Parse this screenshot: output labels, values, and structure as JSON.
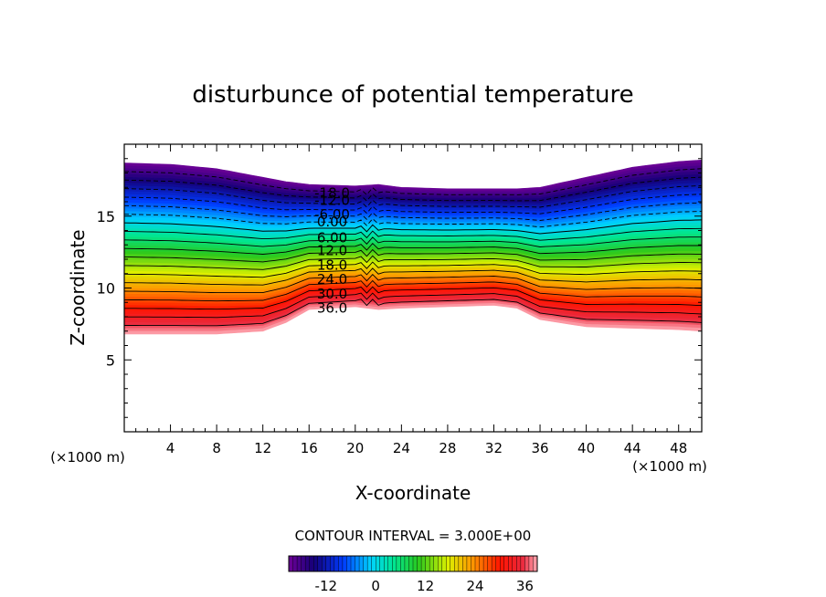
{
  "chart_data": {
    "type": "contour",
    "title": "disturbunce of potential temperature",
    "xlabel": "X-coordinate",
    "ylabel": "Z-coordinate",
    "x_unit_label": "(×1000 m)",
    "y_unit_label": "(×1000 m)",
    "xlim": [
      0,
      50
    ],
    "ylim": [
      0,
      20
    ],
    "x_ticks": [
      4,
      8,
      12,
      16,
      20,
      24,
      28,
      32,
      36,
      40,
      44,
      48
    ],
    "y_ticks": [
      5,
      10,
      15
    ],
    "contour_interval_text": "CONTOUR INTERVAL = 3.000E+00",
    "contour_interval": 3.0,
    "value_range": [
      -21,
      39
    ],
    "contour_labels": [
      "-18.0",
      "-12.0",
      "-6.00",
      "0.00",
      "6.00",
      "12.0",
      "18.0",
      "24.0",
      "30.0",
      "36.0"
    ],
    "contour_label_x": 18,
    "contour_label_z": [
      16.6,
      16.1,
      15.1,
      14.6,
      13.5,
      12.6,
      11.6,
      10.6,
      9.6,
      8.6
    ],
    "field": {
      "description": "layer of large negative-to-positive disturbance; top boundary (-21) and bottom boundary (+39) vary with x",
      "x": [
        0,
        4,
        8,
        12,
        14,
        16,
        20,
        22,
        24,
        28,
        32,
        34,
        36,
        40,
        44,
        48,
        50
      ],
      "z_top": [
        18.7,
        18.6,
        18.3,
        17.7,
        17.4,
        17.2,
        17.1,
        17.2,
        17.0,
        16.9,
        16.9,
        16.9,
        17.0,
        17.7,
        18.4,
        18.8,
        18.9
      ],
      "z_bottom": [
        6.8,
        6.8,
        6.8,
        7.0,
        7.6,
        8.5,
        8.7,
        8.5,
        8.6,
        8.7,
        8.8,
        8.6,
        7.8,
        7.3,
        7.2,
        7.1,
        7.0
      ]
    },
    "colorbar": {
      "tick_labels": [
        "-12",
        "0",
        "12",
        "24",
        "36"
      ],
      "tick_values": [
        -12,
        0,
        12,
        24,
        36
      ],
      "range": [
        -21,
        39
      ]
    }
  }
}
